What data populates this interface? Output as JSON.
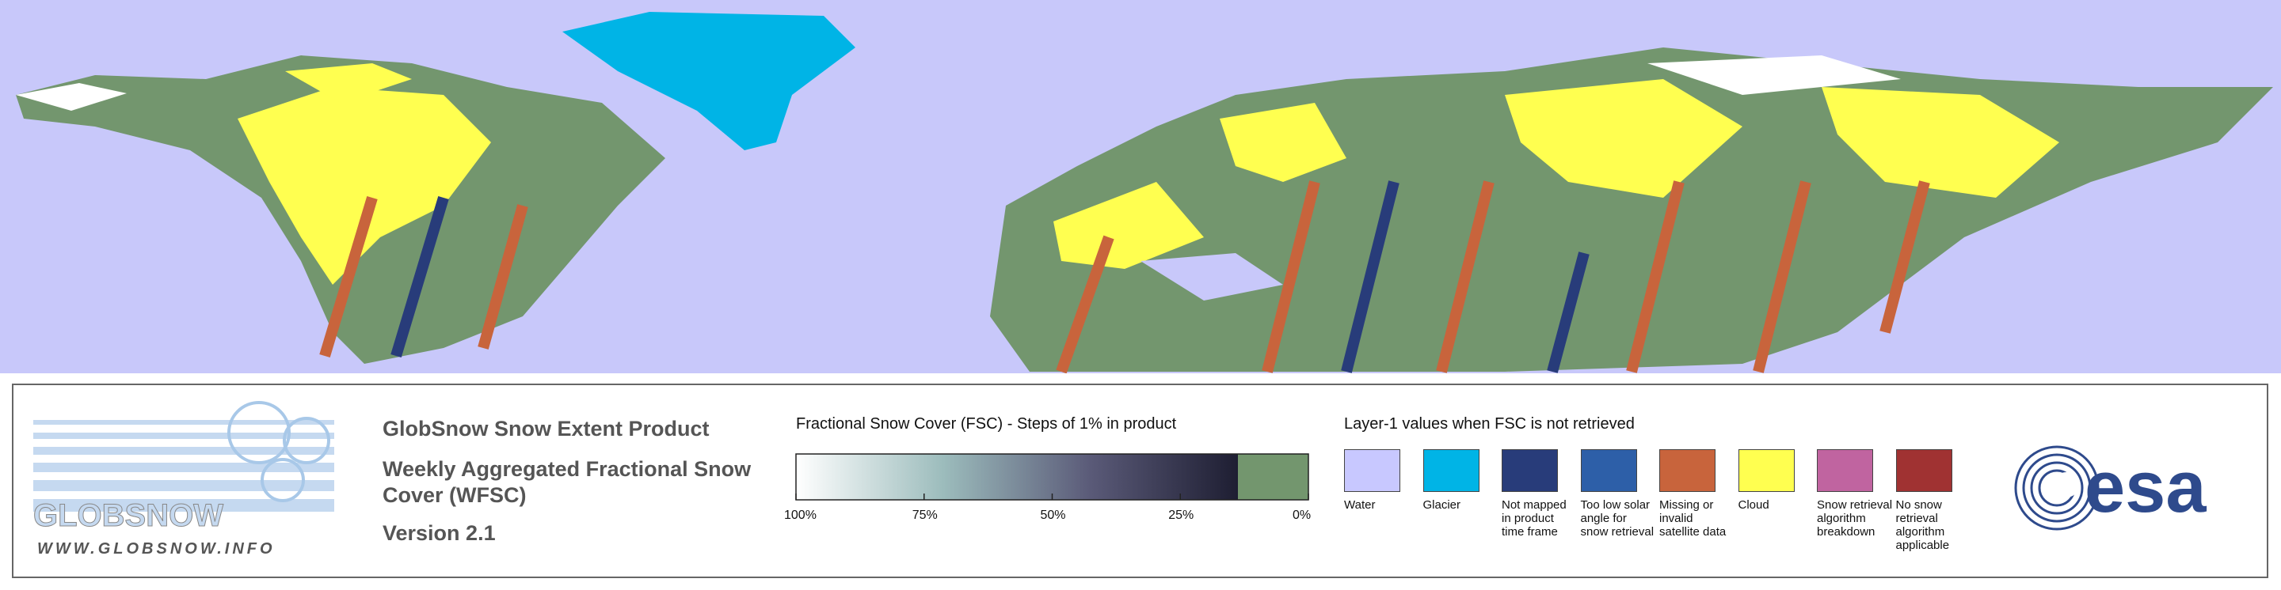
{
  "logo": {
    "name": "GLOBSNOW",
    "url": "WWW.GLOBSNOW.INFO"
  },
  "header": {
    "title": "GlobSnow Snow Extent Product",
    "subtitle": "Weekly Aggregated Fractional Snow Cover (WFSC)",
    "version": "Version 2.1"
  },
  "colorbar": {
    "title": "Fractional Snow Cover (FSC) - Steps of 1% in product",
    "lim": [
      100,
      0
    ],
    "ticks": [
      {
        "value": 100,
        "label": "100%"
      },
      {
        "value": 75,
        "label": "75%"
      },
      {
        "value": 50,
        "label": "50%"
      },
      {
        "value": 25,
        "label": "25%"
      },
      {
        "value": 0,
        "label": "0%"
      }
    ],
    "colors": [
      "#ffffff",
      "#9cbcbc",
      "#5a5a78",
      "#1e1e32"
    ],
    "zero_color": "#73966e"
  },
  "layer1": {
    "title": "Layer-1 values when FSC is not retrieved",
    "items": [
      {
        "label": "Water",
        "color": "#c8c8ff"
      },
      {
        "label": "Glacier",
        "color": "#00b4e6"
      },
      {
        "label": "Not mapped in product time frame",
        "color": "#283c7a"
      },
      {
        "label": "Too low solar angle for snow retrieval",
        "color": "#2d5fa8"
      },
      {
        "label": "Missing or invalid satellite data",
        "color": "#c8643c"
      },
      {
        "label": "Cloud",
        "color": "#ffff50"
      },
      {
        "label": "Snow retrieval algorithm breakdown",
        "color": "#c064a0"
      },
      {
        "label": "No snow retrieval algorithm applicable",
        "color": "#a03232"
      }
    ]
  },
  "esa_logo": "esa"
}
